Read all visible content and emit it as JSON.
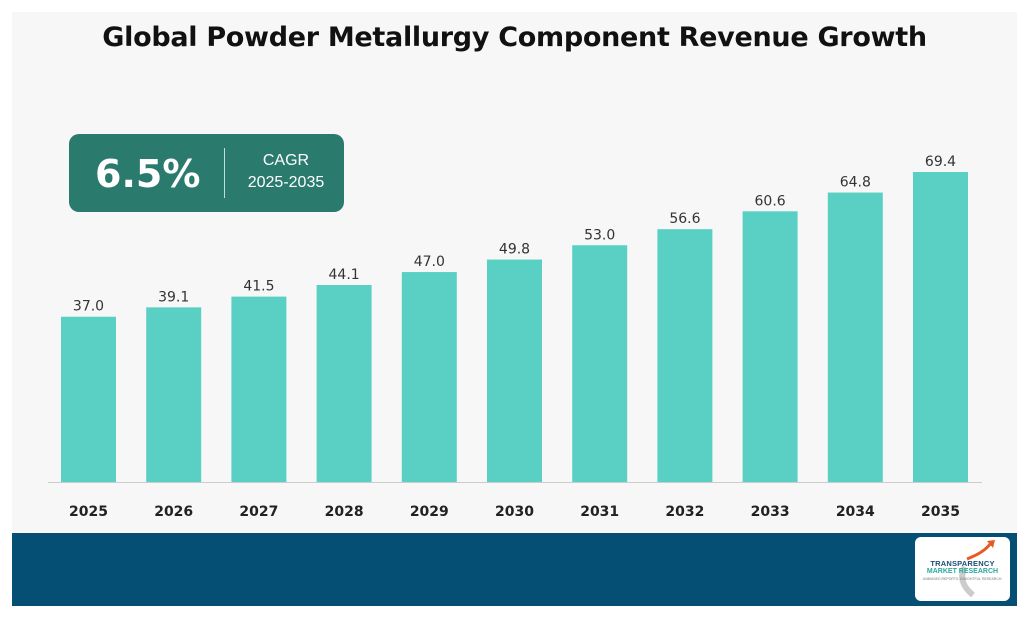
{
  "title": "Global Powder Metallurgy Component Revenue Growth",
  "cagr": {
    "value": "6.5%",
    "label": "CAGR",
    "period": "2025-2035"
  },
  "colors": {
    "bar": "#5ad0c5",
    "cagr_box": "#2a7a6e",
    "footer": "#044f73"
  },
  "logo": {
    "line1": "TRANSPARENCY",
    "line2": "MARKET RESEARCH",
    "line3": "UNBIASED REPORTS. INSIGHTFUL RESEARCH."
  },
  "chart_data": {
    "type": "bar",
    "title": "Global Powder Metallurgy Component Revenue Growth",
    "categories": [
      "2025",
      "2026",
      "2027",
      "2028",
      "2029",
      "2030",
      "2031",
      "2032",
      "2033",
      "2034",
      "2035"
    ],
    "values": [
      37.0,
      39.1,
      41.5,
      44.1,
      47.0,
      49.8,
      53.0,
      56.6,
      60.6,
      64.8,
      69.4
    ],
    "value_labels": [
      "37.0",
      "39.1",
      "41.5",
      "44.1",
      "47.0",
      "49.8",
      "53.0",
      "56.6",
      "60.6",
      "64.8",
      "69.4"
    ],
    "xlabel": "",
    "ylabel": "",
    "ylim": [
      0,
      69.4
    ],
    "grid": false,
    "legend": "none"
  }
}
